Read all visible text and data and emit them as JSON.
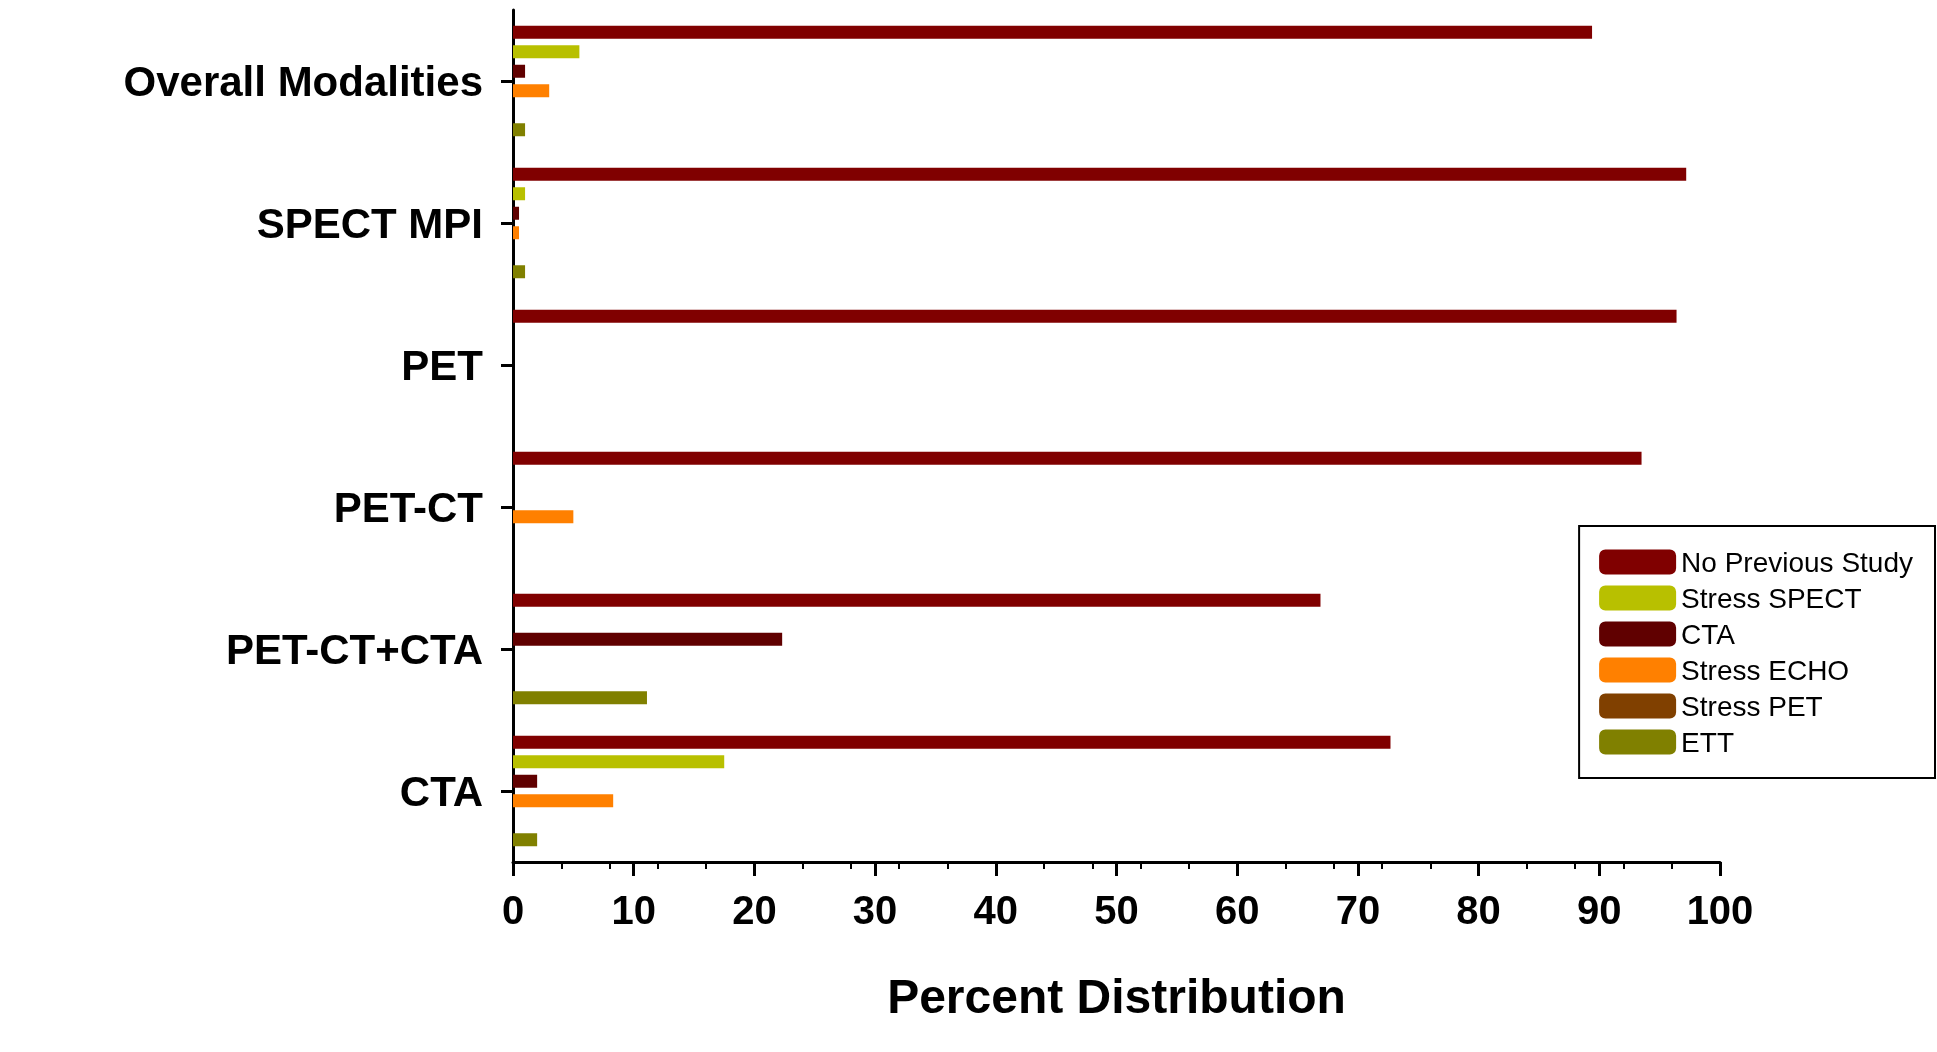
{
  "chart_data": {
    "type": "bar",
    "orientation": "horizontal",
    "xlabel": "Percent Distribution",
    "categories": [
      "Overall Modalities",
      "SPECT MPI",
      "PET",
      "PET-CT",
      "PET-CT+CTA",
      "CTA"
    ],
    "series": [
      {
        "name": "No Previous Study",
        "color": "#800000",
        "values": [
          89.4,
          97.2,
          96.4,
          93.5,
          66.9,
          72.7
        ]
      },
      {
        "name": "Stress SPECT",
        "color": "#b8c000",
        "values": [
          5.5,
          1.0,
          0,
          0,
          0,
          17.5
        ]
      },
      {
        "name": "CTA",
        "color": "#600000",
        "values": [
          1.0,
          0.5,
          0,
          0,
          22.3,
          2.0
        ]
      },
      {
        "name": "Stress ECHO",
        "color": "#ff8000",
        "values": [
          3.0,
          0.5,
          0,
          5.0,
          0,
          8.3
        ]
      },
      {
        "name": "Stress PET",
        "color": "#804000",
        "values": [
          0,
          0,
          0,
          0,
          0,
          0
        ]
      },
      {
        "name": "ETT",
        "color": "#808000",
        "values": [
          1.0,
          1.0,
          0,
          0,
          11.1,
          2.0
        ]
      }
    ],
    "xlim": [
      0,
      100
    ],
    "xticks": [
      0,
      10,
      20,
      30,
      40,
      50,
      60,
      70,
      80,
      90,
      100
    ],
    "grid": false,
    "legend": "bottom right"
  }
}
